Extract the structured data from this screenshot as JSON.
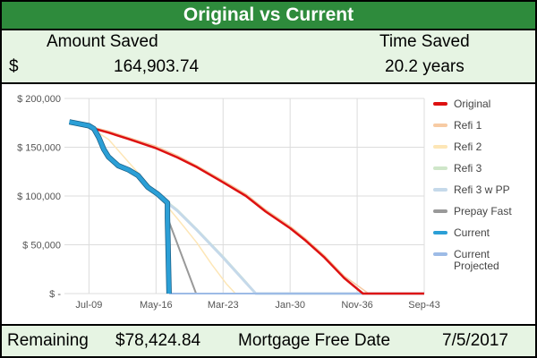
{
  "header": {
    "title": "Original vs Current"
  },
  "summary": {
    "amount_saved_label": "Amount Saved",
    "time_saved_label": "Time Saved",
    "currency_symbol": "$",
    "amount_saved_value": "164,903.74",
    "time_saved_value": "20.2 years"
  },
  "footer": {
    "remaining_label": "Remaining",
    "remaining_value": "$78,424.84",
    "free_date_label": "Mortgage Free Date",
    "free_date_value": "7/5/2017"
  },
  "colors": {
    "title_bg": "#2e8b3c",
    "panel_bg": "#e6f4e3"
  },
  "chart_data": {
    "type": "line",
    "title": "",
    "xlabel": "",
    "ylabel": "",
    "x_ticks": [
      "Jul-09",
      "May-16",
      "Mar-23",
      "Jan-30",
      "Nov-36",
      "Sep-43"
    ],
    "y_ticks": [
      "$ 200,000",
      "$ 150,000",
      "$ 100,000",
      "$ 50,000",
      "$ -"
    ],
    "ylim": [
      0,
      200000
    ],
    "grid": true,
    "legend_position": "right",
    "series": [
      {
        "name": "Original",
        "color": "#dd1111",
        "width": 2.5,
        "points": [
          [
            "Jul-07",
            175000
          ],
          [
            "Jul-09",
            170500
          ],
          [
            "Jul-11",
            165000
          ],
          [
            "Jul-13",
            158500
          ],
          [
            "May-16",
            149000
          ],
          [
            "Jul-18",
            139500
          ],
          [
            "Jul-20",
            129500
          ],
          [
            "Mar-23",
            114000
          ],
          [
            "Jul-25",
            100000
          ],
          [
            "Jul-27",
            84000
          ],
          [
            "Jan-30",
            67000
          ],
          [
            "Jul-31",
            55000
          ],
          [
            "Jul-33",
            37000
          ],
          [
            "Jul-35",
            16000
          ],
          [
            "Jun-37",
            0
          ],
          [
            "Sep-43",
            0
          ]
        ]
      },
      {
        "name": "Refi 1",
        "color": "#f7cba4",
        "width": 1.5,
        "points": [
          [
            "Jul-07",
            175500
          ],
          [
            "Jul-09",
            171500
          ],
          [
            "Jul-11",
            166500
          ],
          [
            "Jul-13",
            160000
          ],
          [
            "May-16",
            151000
          ],
          [
            "Jul-18",
            141500
          ],
          [
            "Jul-20",
            131000
          ],
          [
            "Mar-23",
            116000
          ],
          [
            "Jul-25",
            102000
          ],
          [
            "Jul-27",
            86000
          ],
          [
            "Jan-30",
            69000
          ],
          [
            "Jul-31",
            57000
          ],
          [
            "Jul-33",
            39000
          ],
          [
            "Jul-35",
            18000
          ],
          [
            "Jan-38",
            0
          ],
          [
            "Sep-43",
            0
          ]
        ]
      },
      {
        "name": "Refi 2",
        "color": "#fde6b6",
        "width": 1.5,
        "points": [
          [
            "Jul-09",
            171000
          ],
          [
            "Jul-11",
            158000
          ],
          [
            "Jul-13",
            135000
          ],
          [
            "May-16",
            103000
          ],
          [
            "Jul-18",
            77000
          ],
          [
            "Jul-20",
            52000
          ],
          [
            "Jan-22",
            30000
          ],
          [
            "Jul-23",
            10000
          ],
          [
            "Jun-24",
            0
          ],
          [
            "Sep-43",
            0
          ]
        ]
      },
      {
        "name": "Refi 3",
        "color": "#cfe6c9",
        "width": 2,
        "points": [
          [
            "May-15",
            110000
          ],
          [
            "May-16",
            103000
          ],
          [
            "Jul-18",
            86000
          ],
          [
            "Jul-20",
            66000
          ],
          [
            "Mar-23",
            38000
          ],
          [
            "Jul-25",
            12000
          ],
          [
            "Jul-26",
            0
          ],
          [
            "Sep-43",
            0
          ]
        ]
      },
      {
        "name": "Refi 3 w PP",
        "color": "#c5d9ea",
        "width": 3,
        "points": [
          [
            "May-15",
            109000
          ],
          [
            "May-16",
            102000
          ],
          [
            "Jul-18",
            85000
          ],
          [
            "Jul-20",
            65000
          ],
          [
            "Mar-23",
            37000
          ],
          [
            "Jul-25",
            11000
          ],
          [
            "Jul-26",
            0
          ],
          [
            "Sep-43",
            0
          ]
        ]
      },
      {
        "name": "Prepay Fast",
        "color": "#999999",
        "width": 2,
        "points": [
          [
            "Jul-17",
            78000
          ],
          [
            "Jun-20",
            0
          ],
          [
            "Sep-43",
            0
          ]
        ]
      },
      {
        "name": "Current",
        "color": "#2b9fd6",
        "width": 4.5,
        "points": [
          [
            "Jul-07",
            176000
          ],
          [
            "Jul-09",
            172000
          ],
          [
            "Jan-10",
            169000
          ],
          [
            "Jul-10",
            160000
          ],
          [
            "Jan-11",
            148000
          ],
          [
            "Jul-11",
            140000
          ],
          [
            "Jul-12",
            131000
          ],
          [
            "Jul-13",
            127000
          ],
          [
            "Jul-14",
            121000
          ],
          [
            "Jul-15",
            109000
          ],
          [
            "Jul-16",
            102000
          ],
          [
            "Jul-17",
            93000
          ],
          [
            "Jul-17",
            78000
          ],
          [
            "Sep-17",
            0
          ]
        ]
      },
      {
        "name": "Current\nProjected",
        "color": "#9dbbe6",
        "width": 2,
        "points": [
          [
            "Sep-17",
            0
          ],
          [
            "Sep-43",
            0
          ]
        ]
      }
    ]
  }
}
